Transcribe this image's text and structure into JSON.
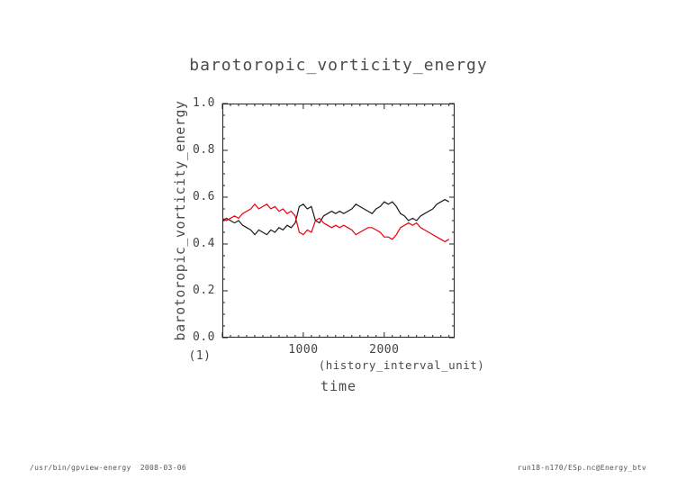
{
  "footer": {
    "left": "/usr/bin/gpview-energy  2008-03-06",
    "right": "run18-n170/ESp.nc@Energy_btv"
  },
  "chart_data": {
    "type": "line",
    "title": "barotoropic_vorticity_energy",
    "xlabel": "time",
    "xlabel_unit": "(history_interval_unit)",
    "ylabel": "barotoropic_vorticity_energy",
    "axis_note": "(1)",
    "legend": "none",
    "grid": false,
    "xlim": [
      0,
      2870
    ],
    "ylim": [
      0.0,
      1.0
    ],
    "x_major_ticks": [
      0,
      1000,
      2000
    ],
    "x_tick_labels": [
      {
        "value": 1000,
        "label": "1000"
      },
      {
        "value": 2000,
        "label": "2000"
      }
    ],
    "x_minor_step": 100,
    "y_major_ticks": [
      0.0,
      0.2,
      0.4,
      0.6,
      0.8,
      1.0
    ],
    "y_tick_labels": [
      "0.0",
      "0.2",
      "0.4",
      "0.6",
      "0.8",
      "1.0"
    ],
    "y_minor_step": 0.05,
    "x": [
      0,
      50,
      100,
      150,
      200,
      250,
      300,
      350,
      400,
      450,
      500,
      550,
      600,
      650,
      700,
      750,
      800,
      850,
      900,
      950,
      1000,
      1050,
      1100,
      1150,
      1200,
      1250,
      1300,
      1350,
      1400,
      1450,
      1500,
      1550,
      1600,
      1650,
      1700,
      1750,
      1800,
      1850,
      1900,
      1950,
      2000,
      2050,
      2100,
      2150,
      2200,
      2250,
      2300,
      2350,
      2400,
      2450,
      2500,
      2550,
      2600,
      2650,
      2700,
      2750,
      2800
    ],
    "series": [
      {
        "name": "series-black",
        "color": "#1a1a1a",
        "values": [
          0.5,
          0.51,
          0.5,
          0.49,
          0.5,
          0.48,
          0.47,
          0.46,
          0.44,
          0.46,
          0.45,
          0.44,
          0.46,
          0.45,
          0.47,
          0.46,
          0.48,
          0.47,
          0.49,
          0.56,
          0.57,
          0.55,
          0.56,
          0.5,
          0.49,
          0.52,
          0.53,
          0.54,
          0.53,
          0.54,
          0.53,
          0.54,
          0.55,
          0.57,
          0.56,
          0.55,
          0.54,
          0.53,
          0.55,
          0.56,
          0.58,
          0.57,
          0.58,
          0.56,
          0.53,
          0.52,
          0.5,
          0.51,
          0.5,
          0.52,
          0.53,
          0.54,
          0.55,
          0.57,
          0.58,
          0.59,
          0.58
        ]
      },
      {
        "name": "series-red",
        "color": "#e8000d",
        "values": [
          0.51,
          0.5,
          0.51,
          0.52,
          0.51,
          0.53,
          0.54,
          0.55,
          0.57,
          0.55,
          0.56,
          0.57,
          0.55,
          0.56,
          0.54,
          0.55,
          0.53,
          0.54,
          0.52,
          0.45,
          0.44,
          0.46,
          0.45,
          0.5,
          0.51,
          0.49,
          0.48,
          0.47,
          0.48,
          0.47,
          0.48,
          0.47,
          0.46,
          0.44,
          0.45,
          0.46,
          0.47,
          0.47,
          0.46,
          0.45,
          0.43,
          0.43,
          0.42,
          0.44,
          0.47,
          0.48,
          0.49,
          0.48,
          0.49,
          0.47,
          0.46,
          0.45,
          0.44,
          0.43,
          0.42,
          0.41,
          0.42
        ]
      }
    ]
  }
}
